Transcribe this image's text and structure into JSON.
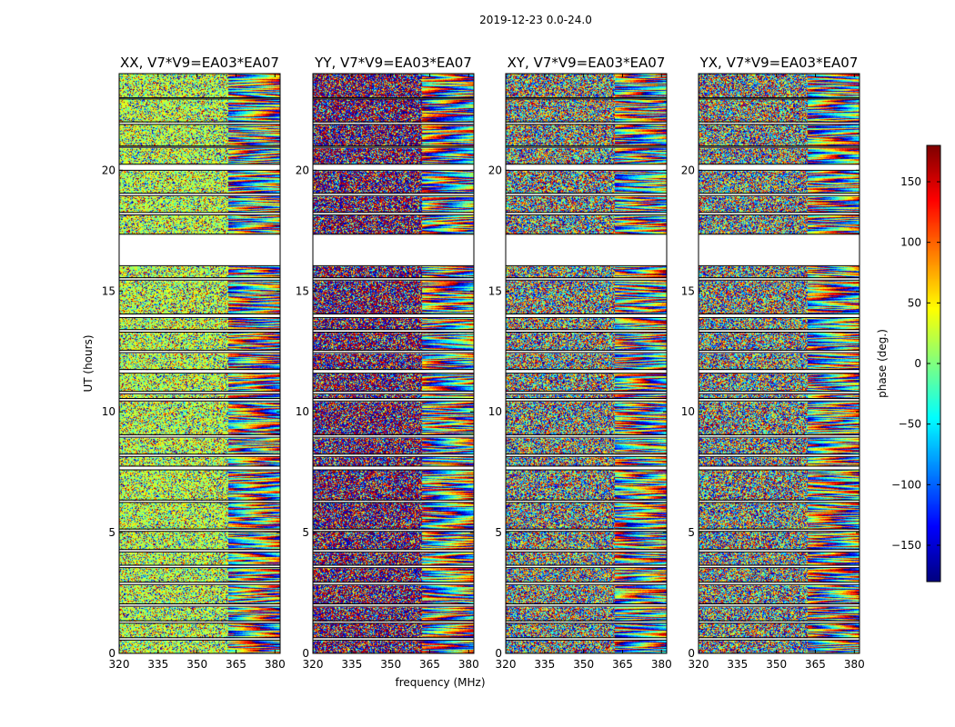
{
  "figure": {
    "suptitle": "2019-12-23 0.0-24.0"
  },
  "chart_data": [
    {
      "type": "heatmap",
      "title": "XX, V7*V9=EA03*EA07",
      "xlabel": "",
      "ylabel": "UT (hours)",
      "xlim": [
        320,
        382
      ],
      "ylim": [
        0,
        24
      ],
      "xticks": [
        320,
        335,
        350,
        365,
        380
      ],
      "yticks": [
        0,
        5,
        10,
        15,
        20
      ],
      "value_label": "phase (deg.)",
      "value_range": [
        -180,
        180
      ],
      "seed": 11,
      "mode": "xx"
    },
    {
      "type": "heatmap",
      "title": "YY, V7*V9=EA03*EA07",
      "xlabel": "frequency (MHz)",
      "ylabel": "",
      "xlim": [
        320,
        382
      ],
      "ylim": [
        0,
        24
      ],
      "xticks": [
        320,
        335,
        350,
        365,
        380
      ],
      "yticks": [
        0,
        5,
        10,
        15,
        20
      ],
      "value_label": "phase (deg.)",
      "value_range": [
        -180,
        180
      ],
      "seed": 23,
      "mode": "yy"
    },
    {
      "type": "heatmap",
      "title": "XY, V7*V9=EA03*EA07",
      "xlabel": "",
      "ylabel": "",
      "xlim": [
        320,
        382
      ],
      "ylim": [
        0,
        24
      ],
      "xticks": [
        320,
        335,
        350,
        365,
        380
      ],
      "yticks": [
        0,
        5,
        10,
        15,
        20
      ],
      "value_label": "phase (deg.)",
      "value_range": [
        -180,
        180
      ],
      "seed": 37,
      "mode": "cross"
    },
    {
      "type": "heatmap",
      "title": "YX, V7*V9=EA03*EA07",
      "xlabel": "",
      "ylabel": "",
      "xlim": [
        320,
        382
      ],
      "ylim": [
        0,
        24
      ],
      "xticks": [
        320,
        335,
        350,
        365,
        380
      ],
      "yticks": [
        0,
        5,
        10,
        15,
        20
      ],
      "value_label": "phase (deg.)",
      "value_range": [
        -180,
        180
      ],
      "seed": 51,
      "mode": "cross"
    }
  ],
  "colorbar": {
    "label": "phase (deg.)",
    "range": [
      -180,
      180
    ],
    "ticks": [
      150,
      100,
      50,
      0,
      -50,
      -100,
      -150
    ],
    "tick_labels": [
      "150",
      "100",
      "50",
      "0",
      "−50",
      "−100",
      "−150"
    ],
    "colormap": "jet"
  },
  "gaps_hours": [
    [
      23.0,
      22.95
    ],
    [
      22.0,
      21.9
    ],
    [
      21.0,
      20.95
    ],
    [
      20.25,
      20.0
    ],
    [
      19.05,
      18.95
    ],
    [
      18.25,
      18.15
    ],
    [
      17.35,
      16.05
    ],
    [
      15.55,
      15.45
    ],
    [
      14.05,
      13.9
    ],
    [
      13.4,
      13.3
    ],
    [
      12.55,
      12.45
    ],
    [
      11.75,
      11.6
    ],
    [
      10.85,
      10.75
    ],
    [
      10.55,
      10.45
    ],
    [
      9.05,
      8.95
    ],
    [
      8.25,
      8.15
    ],
    [
      7.75,
      7.6
    ],
    [
      6.35,
      6.25
    ],
    [
      5.15,
      5.05
    ],
    [
      4.3,
      4.2
    ],
    [
      3.65,
      3.55
    ],
    [
      2.95,
      2.85
    ],
    [
      2.05,
      1.95
    ],
    [
      1.35,
      1.25
    ],
    [
      0.65,
      0.55
    ]
  ]
}
